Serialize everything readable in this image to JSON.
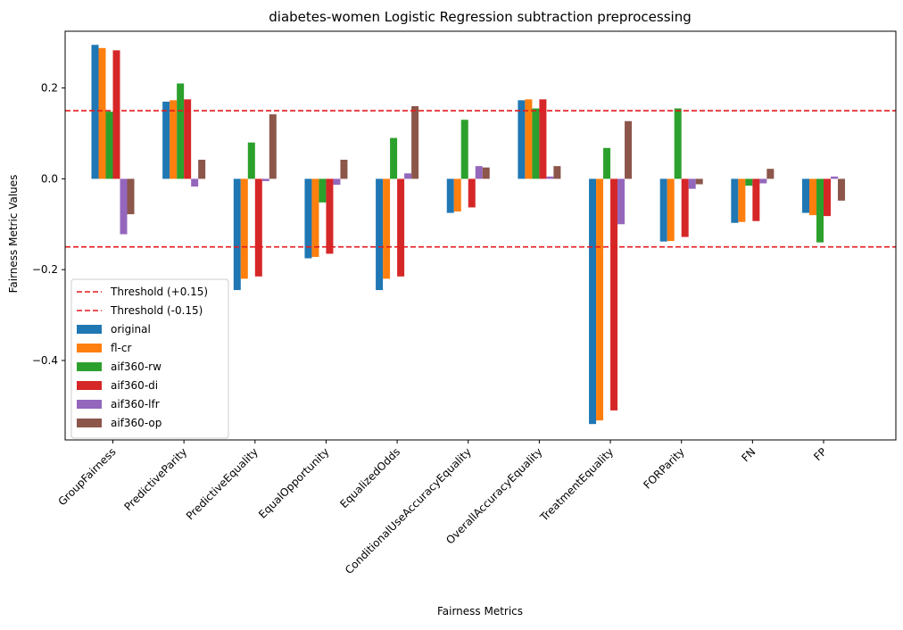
{
  "chart_data": {
    "type": "bar",
    "title": "diabetes-women Logistic Regression subtraction preprocessing",
    "xlabel": "Fairness Metrics",
    "ylabel": "Fairness Metric Values",
    "ylim": [
      -0.575,
      0.325
    ],
    "yticks": [
      -0.4,
      -0.2,
      0.0,
      0.2
    ],
    "ytick_labels": [
      "−0.4",
      "−0.2",
      "0.0",
      "0.2"
    ],
    "grid": false,
    "legend_position": "lower-left",
    "categories": [
      "GroupFairness",
      "PredictiveParity",
      "PredictiveEquality",
      "EqualOpportunity",
      "EqualizedOdds",
      "ConditionalUseAccuracyEquality",
      "OverallAccuracyEquality",
      "TreatmentEquality",
      "FORParity",
      "FN",
      "FP"
    ],
    "thresholds": [
      {
        "name": "Threshold (+0.15)",
        "value": 0.15,
        "color": "#e31a1c"
      },
      {
        "name": "Threshold (-0.15)",
        "value": -0.15,
        "color": "#e31a1c"
      }
    ],
    "series": [
      {
        "name": "original",
        "color": "#1f77b4",
        "values": [
          0.295,
          0.17,
          -0.245,
          -0.175,
          -0.245,
          -0.075,
          0.173,
          -0.54,
          -0.138,
          -0.097,
          -0.075
        ]
      },
      {
        "name": "fl-cr",
        "color": "#ff7f0e",
        "values": [
          0.288,
          0.173,
          -0.22,
          -0.172,
          -0.22,
          -0.072,
          0.175,
          -0.532,
          -0.137,
          -0.095,
          -0.08
        ]
      },
      {
        "name": "aif360-rw",
        "color": "#2ca02c",
        "values": [
          0.148,
          0.21,
          0.08,
          -0.052,
          0.09,
          0.13,
          0.155,
          0.068,
          0.155,
          -0.015,
          -0.14
        ]
      },
      {
        "name": "aif360-di",
        "color": "#d62728",
        "values": [
          0.283,
          0.175,
          -0.215,
          -0.165,
          -0.215,
          -0.063,
          0.175,
          -0.51,
          -0.128,
          -0.093,
          -0.082
        ]
      },
      {
        "name": "aif360-lfr",
        "color": "#9467bd",
        "values": [
          -0.122,
          -0.017,
          -0.005,
          -0.013,
          0.012,
          0.028,
          0.005,
          -0.1,
          -0.022,
          -0.01,
          0.005
        ]
      },
      {
        "name": "aif360-op",
        "color": "#8c564b",
        "values": [
          -0.078,
          0.042,
          0.142,
          0.042,
          0.16,
          0.025,
          0.028,
          0.127,
          -0.012,
          0.022,
          -0.048
        ]
      }
    ]
  }
}
